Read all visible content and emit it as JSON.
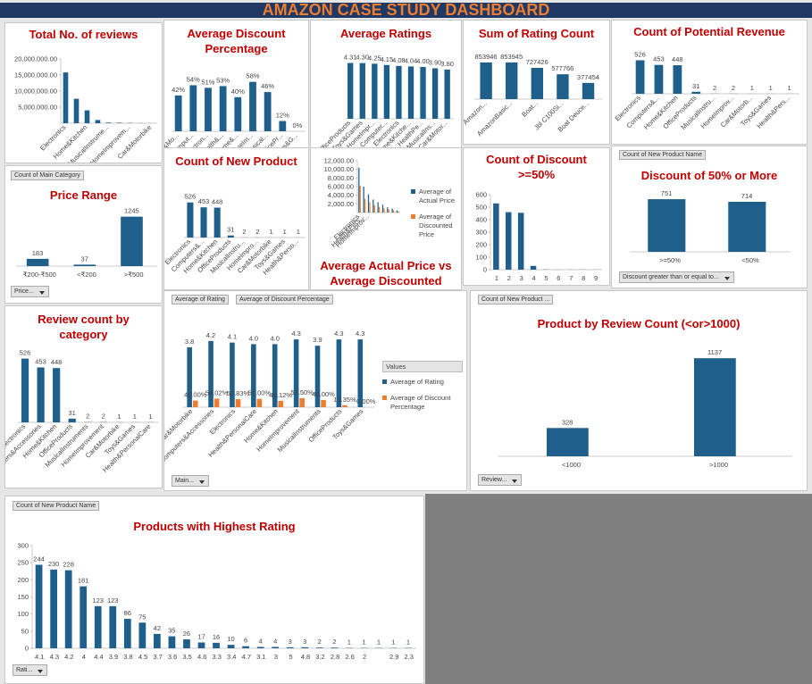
{
  "dashboard_title": "AMAZON CASE STUDY DASHBOARD",
  "chart_data": [
    {
      "type": "bar",
      "title": "Total No. of reviews",
      "color": "#1f5f8b",
      "categories": [
        "Electronics",
        null,
        "Home&Kitchen",
        null,
        "MusicalInstrume...",
        null,
        "HomeImprovem...",
        null,
        "Car&Motorbike"
      ],
      "values": [
        15800000,
        7600000,
        4000000,
        1000000,
        200000,
        150000,
        100000,
        50000,
        20000
      ],
      "ylim": [
        0,
        20000000
      ],
      "yticks": [
        {
          "value": 5000000,
          "label": "5,000,000.00"
        },
        {
          "value": 10000000,
          "label": "10,000,000.00"
        },
        {
          "value": 15000000,
          "label": "15,000,000.00"
        },
        {
          "value": 20000000,
          "label": "20,000,000.00"
        }
      ]
    },
    {
      "type": "bar",
      "title": "Average Discount Percentage",
      "color": "#1f5f8b",
      "categories": [
        "Car&Mo...",
        "Comput...",
        "Electron...",
        "Health&...",
        "Home&...",
        "HomeIm...",
        "Musical...",
        "OfficePr...",
        "Toys&G..."
      ],
      "values": [
        42,
        54,
        51,
        53,
        40,
        58,
        46,
        12,
        0
      ],
      "value_labels": [
        "42%",
        "54%",
        "51%",
        "53%",
        "40%",
        "58%",
        "46%",
        "12%",
        "0%"
      ]
    },
    {
      "type": "bar",
      "title": "Average Ratings",
      "color": "#1f5f8b",
      "categories": [
        "OfficeProducts",
        "Toys&Games",
        "HomeImpr...",
        "Computer...",
        "Electronics",
        "Home&Kitche...",
        "HealthPe...",
        "MusicalIns...",
        "Car&Motor..."
      ],
      "values": [
        4.31,
        4.3,
        4.25,
        4.15,
        4.08,
        4.04,
        4.0,
        3.9,
        3.8
      ],
      "value_labels": [
        "4.31",
        "4.30",
        "4.25",
        "4.15",
        "4.08",
        "4.04",
        "4.00",
        "3.90",
        "3.80"
      ]
    },
    {
      "type": "bar",
      "title": "Sum of Rating Count",
      "color": "#1f5f8b",
      "categories": [
        "Amazon...",
        "AmazonBasic...",
        "Boat...",
        "Jbl C100Si...",
        "Boat Deuce..."
      ],
      "values": [
        853946,
        853945,
        727426,
        577766,
        377454
      ]
    },
    {
      "type": "bar",
      "title": "Count of Potential Revenue",
      "color": "#1f5f8b",
      "categories": [
        "Electronics",
        "Computers&...",
        "Home&Kitchen",
        "OfficeProducts",
        "MusicalInstru...",
        "HomeImprov...",
        "Car&Motorb...",
        "Toys&Games",
        "Health&Pers..."
      ],
      "values": [
        526,
        453,
        448,
        31,
        2,
        2,
        1,
        1,
        1
      ]
    },
    {
      "type": "bar",
      "title": "Price Range",
      "color": "#1f5f8b",
      "field_buttons": [
        "Count of Main Category"
      ],
      "filter": "Price...",
      "categories": [
        "₹200-₹500",
        "<₹200",
        ">₹500"
      ],
      "values": [
        183,
        37,
        1245
      ]
    },
    {
      "type": "bar",
      "title": "Count of New Product",
      "color": "#1f5f8b",
      "categories": [
        "Electronics",
        "Computers&...",
        "Home&Kitchen",
        "OfficeProducts",
        "MusicalInstru...",
        "HomeImpro...",
        "Car&Motorbike",
        "Toys&Games",
        "Health&Perso..."
      ],
      "values": [
        526,
        453,
        448,
        31,
        2,
        2,
        1,
        1,
        1
      ]
    },
    {
      "type": "grouped_bar",
      "title": "Average Actual Price vs Average Discounted Price",
      "categories": [
        "Electronics",
        "Health&Pers...",
        "HomeImprov...",
        null,
        null,
        null,
        null,
        null,
        null
      ],
      "series": [
        {
          "name": "Average of Actual Price",
          "color": "#1f5f8b",
          "values": [
            10400,
            6000,
            4200,
            3000,
            2400,
            1800,
            1200,
            900,
            500
          ]
        },
        {
          "name": "Average of Discounted Price",
          "color": "#ed7d31",
          "values": [
            6200,
            3200,
            2400,
            1700,
            1300,
            1000,
            700,
            500,
            300
          ]
        }
      ],
      "ylim": [
        0,
        12000
      ],
      "yticks": [
        {
          "value": 2000,
          "label": "2,000.00"
        },
        {
          "value": 4000,
          "label": "4,000.00"
        },
        {
          "value": 6000,
          "label": "6,000.00"
        },
        {
          "value": 8000,
          "label": "8,000.00"
        },
        {
          "value": 10000,
          "label": "10,000.00"
        },
        {
          "value": 12000,
          "label": "12,000.00"
        }
      ]
    },
    {
      "type": "bar",
      "title": "Count of Discount >=50%",
      "color": "#1f5f8b",
      "categories": [
        "1",
        "2",
        "3",
        "4",
        "5",
        "6",
        "7",
        "8",
        "9"
      ],
      "values": [
        530,
        460,
        455,
        30,
        2,
        1,
        1,
        1,
        1
      ],
      "ylim": [
        0,
        600
      ],
      "yticks": [
        0,
        100,
        200,
        300,
        400,
        500,
        600
      ]
    },
    {
      "type": "bar",
      "title": "Discount of 50% or More",
      "color": "#1f5f8b",
      "field_buttons": [
        "Count of New Product Name"
      ],
      "filter": "Discount greater than or equal to...",
      "categories": [
        ">=50%",
        "<50%"
      ],
      "values": [
        751,
        714
      ]
    },
    {
      "type": "bar",
      "title": "Review count by category",
      "color": "#1f5f8b",
      "categories": [
        "Electronics",
        "Computers&Accessories",
        "Home&Kitchen",
        "OfficeProducts",
        "MusicalInstruments",
        "HomeImprovement",
        "Car&Motorbike",
        "Toys&Games",
        "Health&PersonalCare"
      ],
      "values": [
        526,
        453,
        448,
        31,
        2,
        2,
        1,
        1,
        1
      ]
    },
    {
      "type": "grouped_bar",
      "field_buttons": [
        "Average of Rating",
        "Average of Discount Percentage"
      ],
      "filter": "Main...",
      "legend_title": "Values",
      "categories": [
        "Car&Motorbike",
        "Computers&Accessories",
        "Electronics",
        "Health&PersonalCare",
        "Home&Kitchen",
        "HomeImprovement",
        "MusicalInstruments",
        "OfficeProducts",
        "Toys&Games"
      ],
      "series": [
        {
          "name": "Average of Rating",
          "color": "#1f5f8b",
          "values": [
            3.8,
            4.2,
            4.1,
            4.0,
            4.0,
            4.3,
            3.9,
            4.3,
            4.3
          ],
          "value_labels": [
            "3.8",
            "4.2",
            "4.1",
            "4.0",
            "4.0",
            "4.3",
            "3.9",
            "4.3",
            "4.3"
          ]
        },
        {
          "name": "Average of Discount Percentage",
          "color": "#ed7d31",
          "values": [
            0.42,
            0.5402,
            0.5083,
            0.53,
            0.4012,
            0.575,
            0.46,
            0.1235,
            0
          ],
          "value_labels": [
            "42.00%",
            "54.02%",
            "50.83%",
            "53.00%",
            "40.12%",
            "57.50%",
            "46.00%",
            "12.35%",
            "0.00%"
          ]
        }
      ]
    },
    {
      "type": "bar",
      "title": "Product by Review Count (<or>1000)",
      "color": "#1f5f8b",
      "field_buttons": [
        "Count of New Product ..."
      ],
      "filter": "Review...",
      "categories": [
        "<1000",
        ">1000"
      ],
      "values": [
        328,
        1137
      ]
    },
    {
      "type": "bar",
      "title": "Products with Highest Rating",
      "color": "#1f5f8b",
      "field_buttons": [
        "Count of New Product Name"
      ],
      "filter": "Rati...",
      "categories": [
        "4.1",
        "4.3",
        "4.2",
        "4",
        "4.4",
        "3.9",
        "3.8",
        "4.5",
        "3.7",
        "3.6",
        "3.5",
        "4.6",
        "3.3",
        "3.4",
        "4.7",
        "3.1",
        "3",
        "5",
        "4.8",
        "3.2",
        "2.8",
        "2.6",
        "2",
        null,
        "2.9",
        "2.3"
      ],
      "values": [
        244,
        230,
        228,
        181,
        123,
        123,
        86,
        75,
        42,
        35,
        26,
        17,
        16,
        10,
        6,
        4,
        4,
        3,
        3,
        2,
        2,
        1,
        1,
        1,
        1,
        1
      ],
      "ylim": [
        0,
        300
      ],
      "yticks": [
        0,
        50,
        100,
        150,
        200,
        250,
        300
      ]
    }
  ]
}
